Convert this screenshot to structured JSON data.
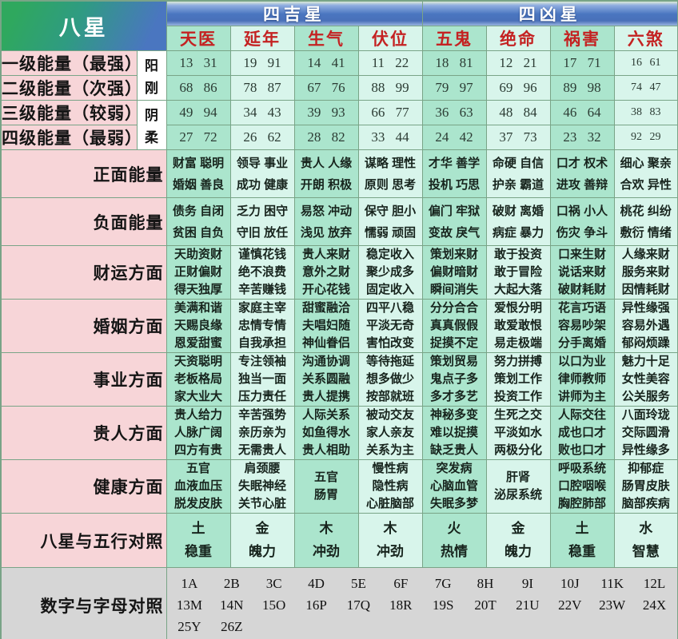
{
  "table": {
    "corner_title": "八星",
    "group_headers": [
      {
        "label": "四吉星",
        "span": 4
      },
      {
        "label": "四凶星",
        "span": 4
      }
    ],
    "star_columns": [
      "天医",
      "延年",
      "生气",
      "伏位",
      "五鬼",
      "绝命",
      "祸害",
      "六煞"
    ],
    "yin_yang_labels": [
      "阳刚",
      "阴柔"
    ],
    "energy_rows": [
      {
        "label": "一级能量（最强）",
        "values": [
          "13 31",
          "19 91",
          "14 41",
          "11 22",
          "18 81",
          "12 21",
          "17 71",
          "16 61"
        ]
      },
      {
        "label": "二级能量（次强）",
        "values": [
          "68 86",
          "78 87",
          "67 76",
          "88 99",
          "79 97",
          "69 96",
          "89 98",
          "74 47"
        ]
      },
      {
        "label": "三级能量（较弱）",
        "values": [
          "49 94",
          "34 43",
          "39 93",
          "66 77",
          "36 63",
          "48 84",
          "46 64",
          "38 83"
        ]
      },
      {
        "label": "四级能量（最弱）",
        "values": [
          "27 72",
          "26 62",
          "28 82",
          "33 44",
          "24 42",
          "37 73",
          "23 32",
          "92 29"
        ]
      }
    ],
    "aspect_rows": [
      {
        "label": "正面能量",
        "cells": [
          [
            "财富 聪明",
            "婚姻 善良"
          ],
          [
            "领导 事业",
            "成功 健康"
          ],
          [
            "贵人 人缘",
            "开朗 积极"
          ],
          [
            "谋略 理性",
            "原则 思考"
          ],
          [
            "才华 善学",
            "投机 巧思"
          ],
          [
            "命硬 自信",
            "护亲 霸道"
          ],
          [
            "口才 权术",
            "进攻 善辩"
          ],
          [
            "细心 聚亲",
            "合欢 异性"
          ]
        ]
      },
      {
        "label": "负面能量",
        "cells": [
          [
            "债务 自闭",
            "贫困 自负"
          ],
          [
            "乏力 困守",
            "守旧 放任"
          ],
          [
            "易怒 冲动",
            "浅见 放弃"
          ],
          [
            "保守 胆小",
            "懦弱 顽固"
          ],
          [
            "偏门 牢狱",
            "变故 戾气"
          ],
          [
            "破财 离婚",
            "病症 暴力"
          ],
          [
            "口祸 小人",
            "伤灾 争斗"
          ],
          [
            "桃花 纠纷",
            "敷衍 情绪"
          ]
        ]
      },
      {
        "label": "财运方面",
        "cells": [
          [
            "天助资财",
            "正财偏财",
            "得天独厚"
          ],
          [
            "谨慎花钱",
            "绝不浪费",
            "辛苦赚钱"
          ],
          [
            "贵人来财",
            "意外之财",
            "开心花钱"
          ],
          [
            "稳定收入",
            "聚少成多",
            "固定收入"
          ],
          [
            "策划来财",
            "偏财暗财",
            "瞬间消失"
          ],
          [
            "敢于投资",
            "敢于冒险",
            "大起大落"
          ],
          [
            "口来生财",
            "说话来财",
            "破财耗财"
          ],
          [
            "人缘来财",
            "服务来财",
            "因情耗财"
          ]
        ]
      },
      {
        "label": "婚姻方面",
        "cells": [
          [
            "美满和谐",
            "天赐良缘",
            "恩爱甜蜜"
          ],
          [
            "家庭主宰",
            "忠情专情",
            "自我承担"
          ],
          [
            "甜蜜融洽",
            "夫唱妇随",
            "神仙眷侣"
          ],
          [
            "四平八稳",
            "平淡无奇",
            "害怕改变"
          ],
          [
            "分分合合",
            "真真假假",
            "捉摸不定"
          ],
          [
            "爱恨分明",
            "敢爱敢恨",
            "易走极端"
          ],
          [
            "花言巧语",
            "容易吵架",
            "分手离婚"
          ],
          [
            "异性缘强",
            "容易外遇",
            "郁闷烦躁"
          ]
        ]
      },
      {
        "label": "事业方面",
        "cells": [
          [
            "天资聪明",
            "老板格局",
            "家大业大"
          ],
          [
            "专注领袖",
            "独当一面",
            "压力责任"
          ],
          [
            "沟通协调",
            "关系圆融",
            "贵人提携"
          ],
          [
            "等待拖延",
            "想多做少",
            "按部就班"
          ],
          [
            "策划贸易",
            "鬼点子多",
            "多才多艺"
          ],
          [
            "努力拼搏",
            "策划工作",
            "投资工作"
          ],
          [
            "以口为业",
            "律师教师",
            "讲师为主"
          ],
          [
            "魅力十足",
            "女性美容",
            "公关服务"
          ]
        ]
      },
      {
        "label": "贵人方面",
        "cells": [
          [
            "贵人给力",
            "人脉广阔",
            "四方有贵"
          ],
          [
            "辛苦强势",
            "亲历亲为",
            "无需贵人"
          ],
          [
            "人际关系",
            "如鱼得水",
            "贵人相助"
          ],
          [
            "被动交友",
            "家人亲友",
            "关系为主"
          ],
          [
            "神秘多变",
            "难以捉摸",
            "缺乏贵人"
          ],
          [
            "生死之交",
            "平淡如水",
            "两极分化"
          ],
          [
            "人际交往",
            "成也口才",
            "败也口才"
          ],
          [
            "八面玲珑",
            "交际圆滑",
            "异性缘多"
          ]
        ]
      },
      {
        "label": "健康方面",
        "cells": [
          [
            "五官",
            "血液血压",
            "脱发皮肤"
          ],
          [
            "肩颈腰",
            "失眠神经",
            "关节心脏"
          ],
          [
            "五官",
            "肠胃"
          ],
          [
            "慢性病",
            "隐性病",
            "心脏脑部"
          ],
          [
            "突发病",
            "心脑血管",
            "失眠多梦"
          ],
          [
            "肝肾",
            "泌尿系统"
          ],
          [
            "呼吸系统",
            "口腔咽喉",
            "胸腔肺部"
          ],
          [
            "抑郁症",
            "肠胃皮肤",
            "脑部疾病"
          ]
        ]
      },
      {
        "label": "八星与五行对照",
        "cells": [
          [
            "土",
            "稳重"
          ],
          [
            "金",
            "魄力"
          ],
          [
            "木",
            "冲劲"
          ],
          [
            "木",
            "冲劲"
          ],
          [
            "火",
            "热情"
          ],
          [
            "金",
            "魄力"
          ],
          [
            "土",
            "稳重"
          ],
          [
            "水",
            "智慧"
          ]
        ]
      }
    ],
    "number_letter_row": {
      "label": "数字与字母对照",
      "items": [
        "1A",
        "2B",
        "3C",
        "4D",
        "5E",
        "6F",
        "7G",
        "8H",
        "9I",
        "10J",
        "11K",
        "12L",
        "13M",
        "14N",
        "15O",
        "16P",
        "17Q",
        "18R",
        "19S",
        "20T",
        "21U",
        "22V",
        "23W",
        "24X",
        "25Y",
        "26Z"
      ]
    }
  },
  "colors": {
    "header_green": "#2fa85e",
    "header_blue": "#4a76c0",
    "red": "#c42222",
    "pink": "#f7d5d8",
    "mint_dark": "#abe5cd",
    "mint_light": "#d8f5eb",
    "gray": "#d6d6d6",
    "border": "#79a487"
  }
}
